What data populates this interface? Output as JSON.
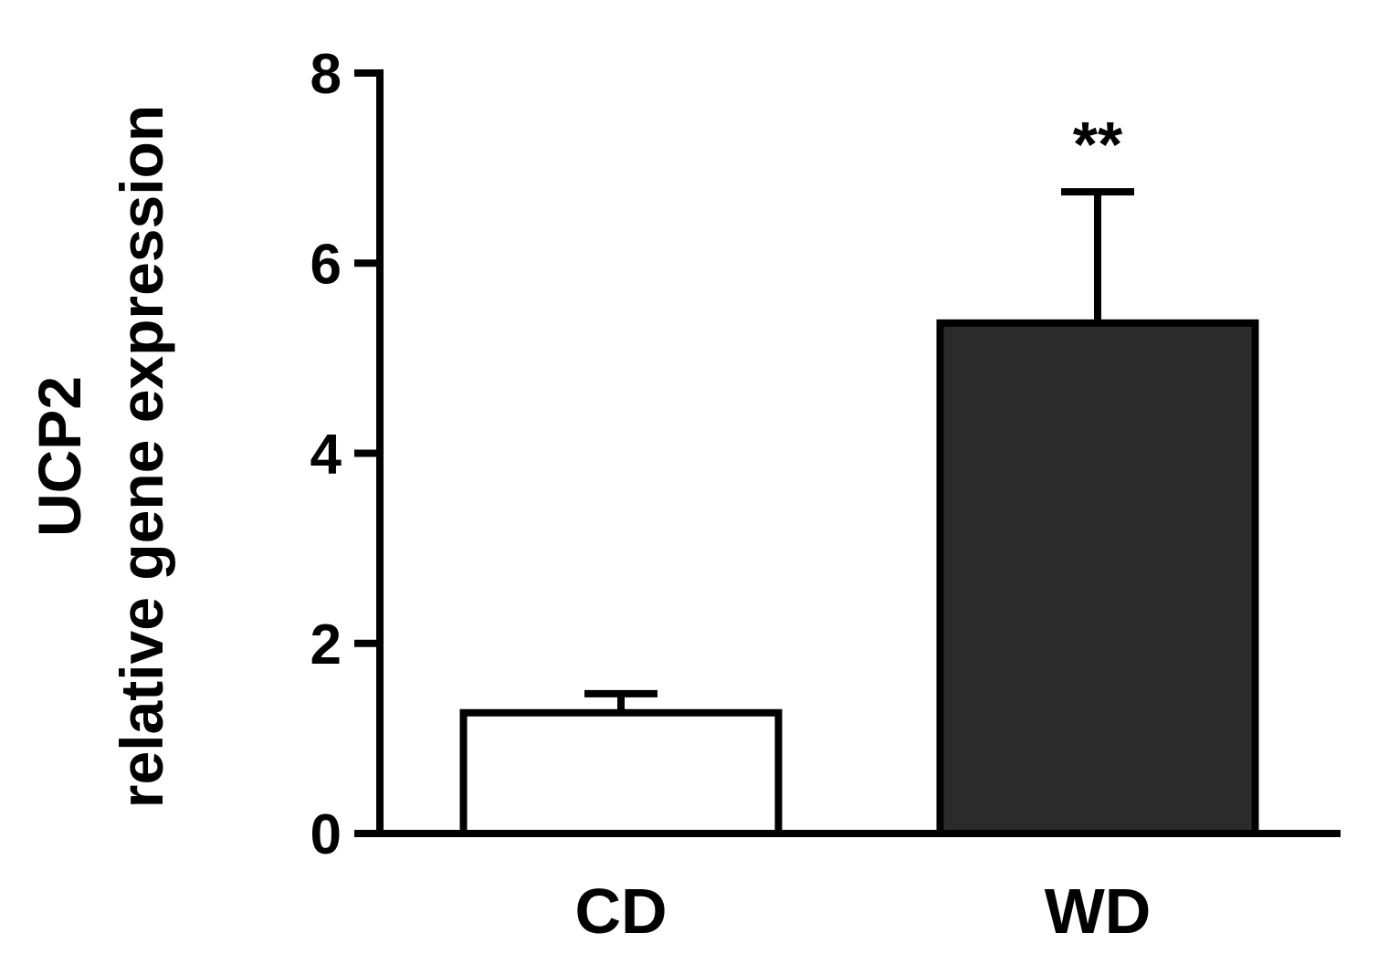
{
  "chart_data": {
    "type": "bar",
    "title": "",
    "xlabel": "",
    "ylabel": [
      "UCP2",
      "relative gene expression"
    ],
    "categories": [
      "CD",
      "WD"
    ],
    "values": [
      1.27,
      5.37
    ],
    "errors": [
      0.2,
      1.38
    ],
    "bar_colors": [
      "#ffffff",
      "#2b2b2b"
    ],
    "annotations": [
      "",
      "**"
    ],
    "ylim": [
      0,
      8
    ],
    "yticks": [
      0,
      2,
      4,
      6,
      8
    ],
    "ytick_labels": [
      "0",
      "2",
      "4",
      "6",
      "8"
    ],
    "grid": false,
    "legend": "none"
  }
}
